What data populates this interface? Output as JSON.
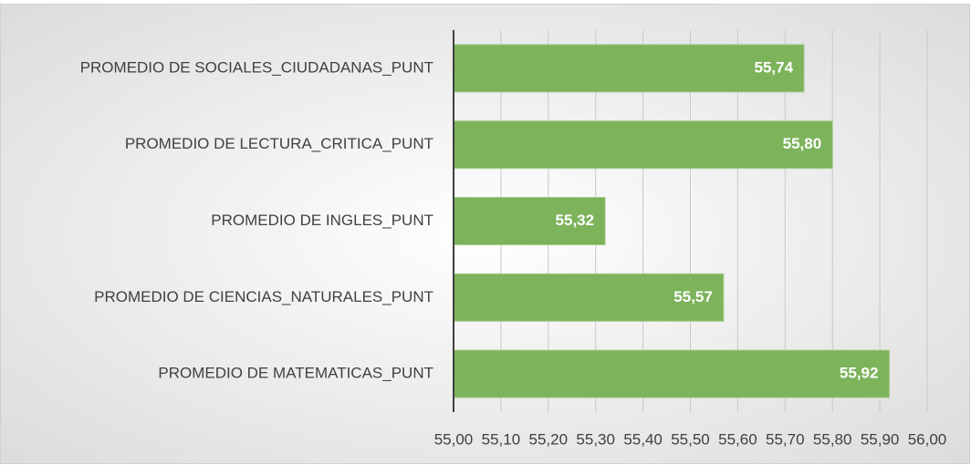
{
  "chart_data": {
    "type": "bar",
    "orientation": "horizontal",
    "categories": [
      "PROMEDIO DE SOCIALES_CIUDADANAS_PUNT",
      "PROMEDIO DE LECTURA_CRITICA_PUNT",
      "PROMEDIO DE INGLES_PUNT",
      "PROMEDIO DE CIENCIAS_NATURALES_PUNT",
      "PROMEDIO DE MATEMATICAS_PUNT"
    ],
    "values": [
      55.74,
      55.8,
      55.32,
      55.57,
      55.92
    ],
    "value_labels": [
      "55,74",
      "55,80",
      "55,32",
      "55,57",
      "55,92"
    ],
    "color": "#7db35b",
    "xlim": [
      55,
      56
    ],
    "xticks": [
      {
        "value": 55,
        "label": "55,00"
      },
      {
        "value": 55.1,
        "label": "55,10"
      },
      {
        "value": 55.2,
        "label": "55,20"
      },
      {
        "value": 55.3,
        "label": "55,30"
      },
      {
        "value": 55.4,
        "label": "55,40"
      },
      {
        "value": 55.5,
        "label": "55,50"
      },
      {
        "value": 55.6,
        "label": "55,60"
      },
      {
        "value": 55.7,
        "label": "55,70"
      },
      {
        "value": 55.8,
        "label": "55,80"
      },
      {
        "value": 55.9,
        "label": "55,90"
      },
      {
        "value": 56,
        "label": "56,00"
      }
    ],
    "grid": true
  }
}
